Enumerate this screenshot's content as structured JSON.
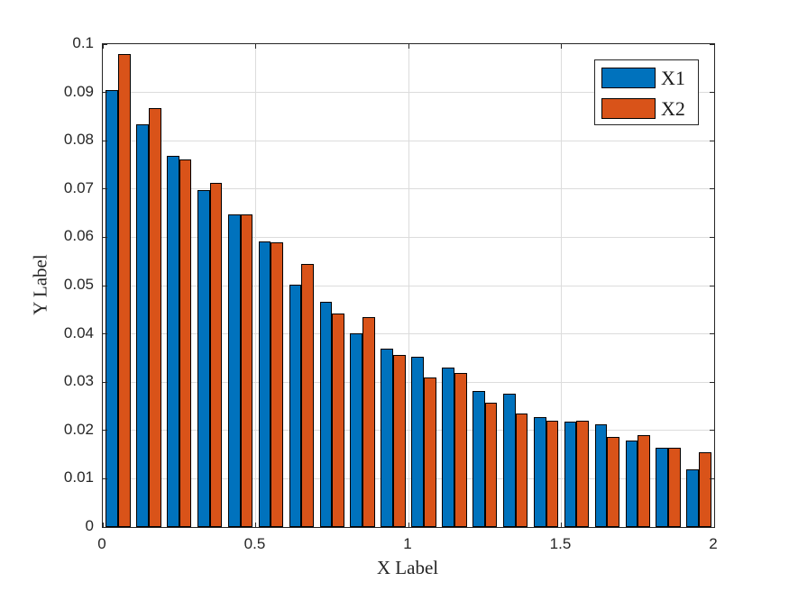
{
  "figure": {
    "background": "#ffffff"
  },
  "chart_data": {
    "type": "bar",
    "title": "",
    "xlabel": "X Label",
    "ylabel": "Y Label",
    "x": [
      0.05,
      0.15,
      0.25,
      0.35,
      0.45,
      0.55,
      0.65,
      0.75,
      0.85,
      0.95,
      1.05,
      1.15,
      1.25,
      1.35,
      1.45,
      1.55,
      1.65,
      1.75,
      1.85,
      1.95
    ],
    "series": [
      {
        "name": "X1",
        "color": "#0072BD",
        "values": [
          0.0905,
          0.0834,
          0.0769,
          0.0698,
          0.0647,
          0.0592,
          0.0502,
          0.0467,
          0.0401,
          0.0369,
          0.0352,
          0.033,
          0.0282,
          0.0277,
          0.0227,
          0.0218,
          0.0212,
          0.0179,
          0.0164,
          0.012
        ]
      },
      {
        "name": "X2",
        "color": "#D95319",
        "values": [
          0.098,
          0.0868,
          0.0762,
          0.0712,
          0.0647,
          0.059,
          0.0545,
          0.0443,
          0.0434,
          0.0356,
          0.031,
          0.0319,
          0.0258,
          0.0235,
          0.0221,
          0.022,
          0.0187,
          0.019,
          0.0165,
          0.0154
        ]
      }
    ],
    "xlim": [
      0,
      2
    ],
    "ylim": [
      0,
      0.1
    ],
    "xticks": [
      0,
      0.5,
      1,
      1.5,
      2
    ],
    "xtick_labels": [
      "0",
      "0.5",
      "1",
      "1.5",
      "2"
    ],
    "yticks": [
      0,
      0.01,
      0.02,
      0.03,
      0.04,
      0.05,
      0.06,
      0.07,
      0.08,
      0.09,
      0.1
    ],
    "ytick_labels": [
      "0",
      "0.01",
      "0.02",
      "0.03",
      "0.04",
      "0.05",
      "0.06",
      "0.07",
      "0.08",
      "0.09",
      "0.1"
    ],
    "grid": true,
    "bar_width": 0.0405,
    "legend": {
      "position": "northeast",
      "entries": [
        "X1",
        "X2"
      ]
    },
    "colors": {
      "axis": "#262626",
      "grid": "#dcdcdc",
      "tick_label": "#262626",
      "bar_edge": "#000000"
    }
  }
}
